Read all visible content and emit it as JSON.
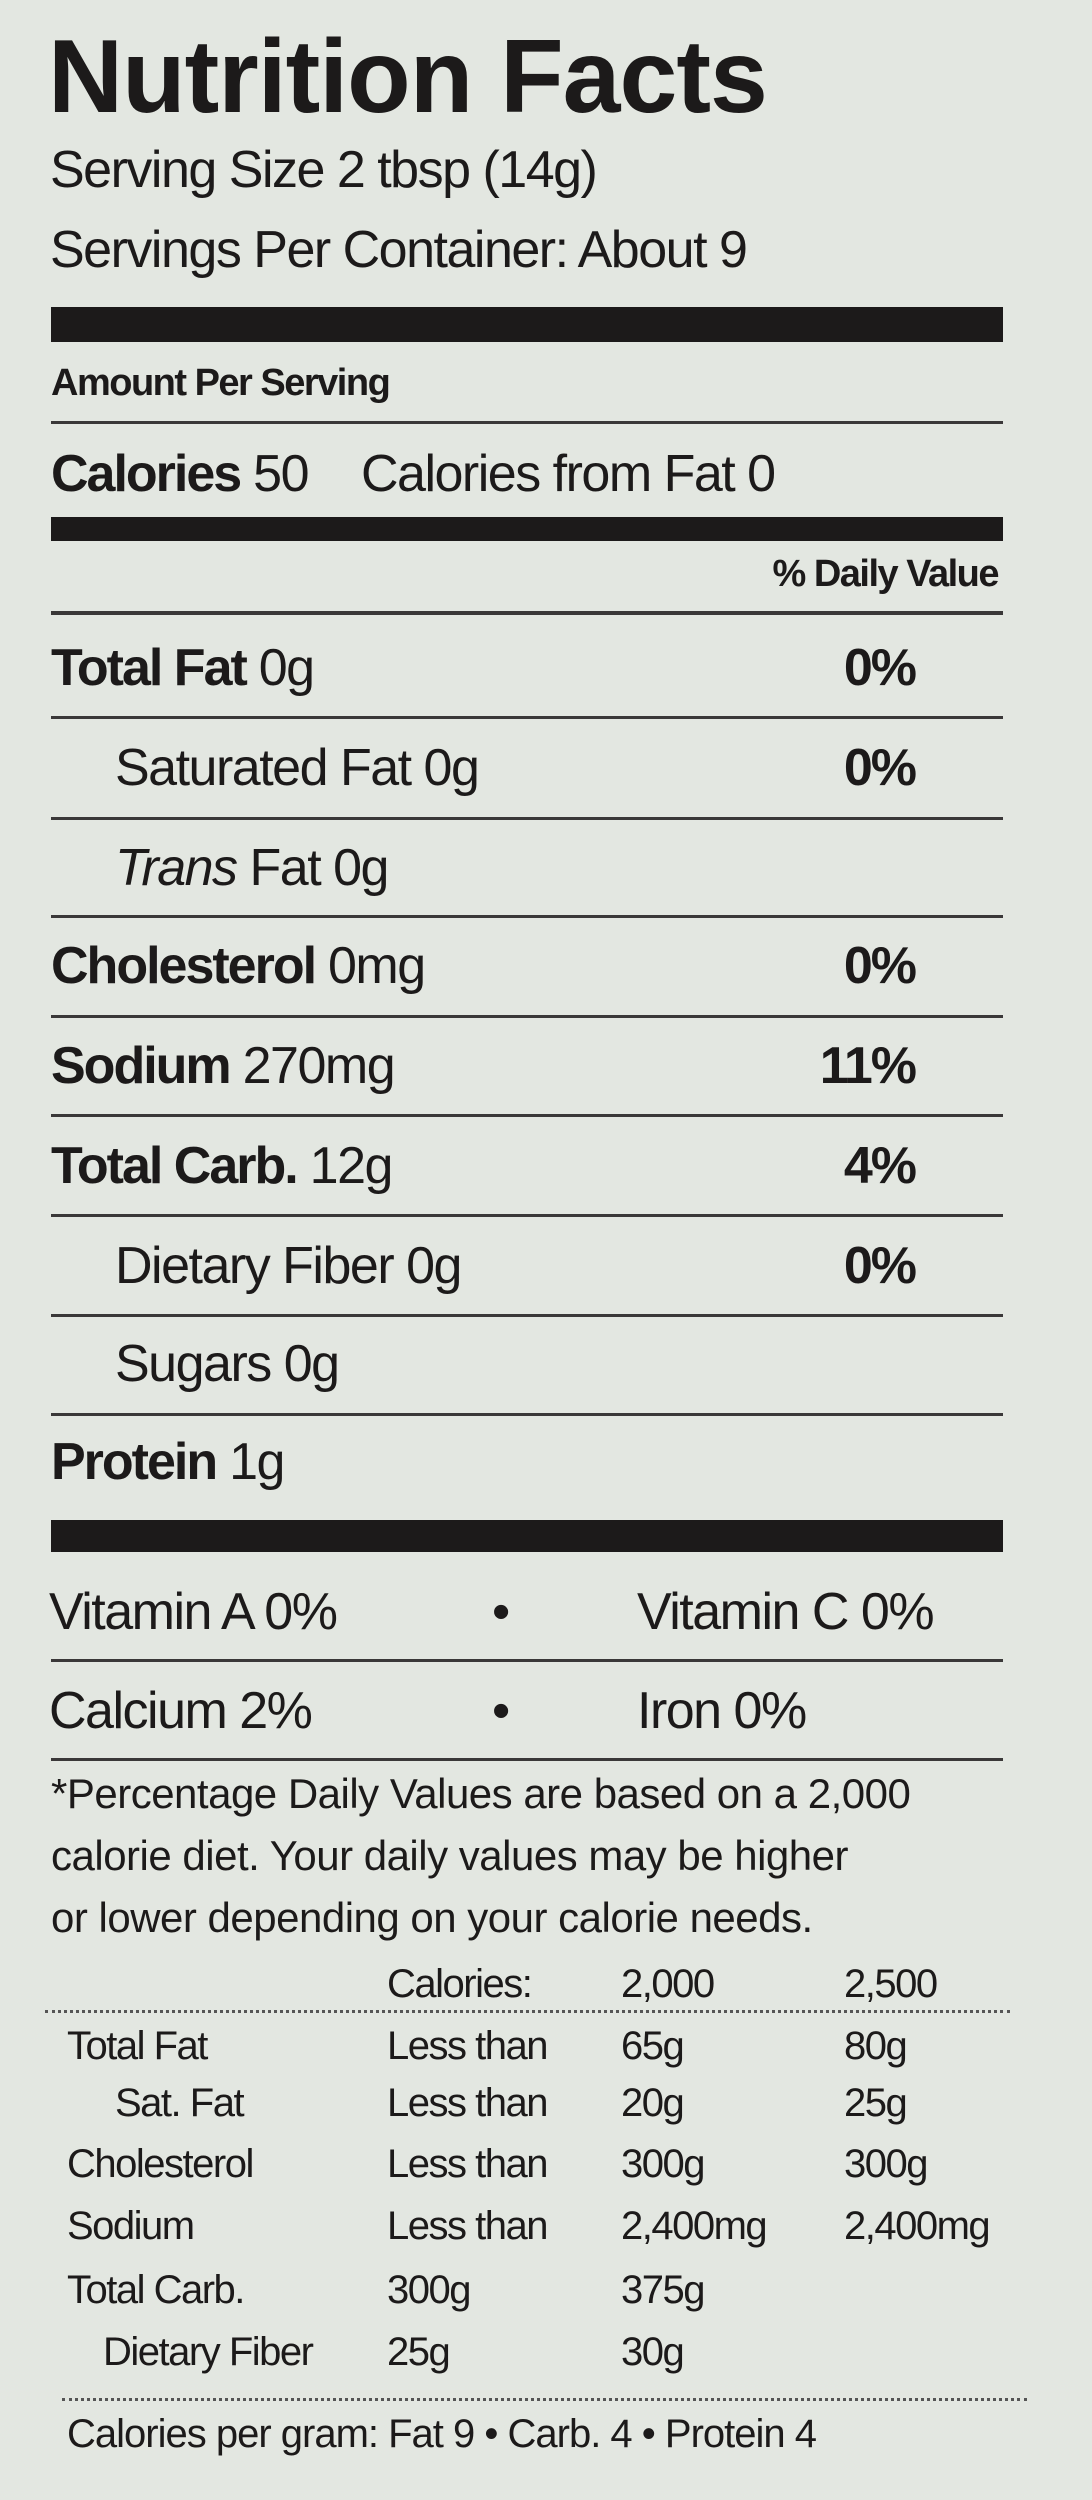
{
  "title": "Nutrition Facts",
  "serving_size": "Serving Size 2 tbsp (14g)",
  "servings_per_container": "Servings Per Container: About 9",
  "amount_per_serving": "Amount Per Serving",
  "calories_label": "Calories",
  "calories_value": "50",
  "calories_from_fat": "Calories from Fat 0",
  "daily_value_header": "% Daily Value",
  "nutrients": [
    {
      "name": "Total Fat",
      "amount": "0g",
      "dv": "0%",
      "bold": true,
      "italic_prefix": "",
      "indent": false
    },
    {
      "name": "Saturated Fat",
      "amount": "0g",
      "dv": "0%",
      "bold": false,
      "italic_prefix": "",
      "indent": true
    },
    {
      "name": "Fat",
      "amount": "0g",
      "dv": "",
      "bold": false,
      "italic_prefix": "Trans",
      "indent": true
    },
    {
      "name": "Cholesterol",
      "amount": "0mg",
      "dv": "0%",
      "bold": true,
      "italic_prefix": "",
      "indent": false
    },
    {
      "name": "Sodium",
      "amount": "270mg",
      "dv": "11%",
      "bold": true,
      "italic_prefix": "",
      "indent": false
    },
    {
      "name": "Total Carb.",
      "amount": "12g",
      "dv": "4%",
      "bold": true,
      "italic_prefix": "",
      "indent": false
    },
    {
      "name": "Dietary Fiber",
      "amount": "0g",
      "dv": "0%",
      "bold": false,
      "italic_prefix": "",
      "indent": true
    },
    {
      "name": "Sugars",
      "amount": "0g",
      "dv": "",
      "bold": false,
      "italic_prefix": "",
      "indent": true
    },
    {
      "name": "Protein",
      "amount": "1g",
      "dv": "",
      "bold": true,
      "italic_prefix": "",
      "indent": false
    }
  ],
  "vitamins": [
    {
      "left": "Vitamin A  0%",
      "right": "Vitamin C  0%"
    },
    {
      "left": "Calcium  2%",
      "right": "Iron  0%"
    }
  ],
  "bullet": "•",
  "footnote": [
    "*Percentage Daily Values are based on a 2,000",
    " calorie diet. Your daily values may be higher",
    " or lower depending on your calorie needs."
  ],
  "dv_table": {
    "header": [
      "",
      "Calories:",
      "2,000",
      "2,500"
    ],
    "rows": [
      [
        "Total Fat",
        "Less than",
        "65g",
        "80g"
      ],
      [
        "Sat. Fat",
        "Less than",
        "20g",
        "25g"
      ],
      [
        "Cholesterol",
        "Less than",
        "300g",
        "300g"
      ],
      [
        "Sodium",
        "Less than",
        "2,400mg",
        "2,400mg"
      ],
      [
        "Total Carb.",
        "300g",
        "375g",
        ""
      ],
      [
        "Dietary Fiber",
        "25g",
        "30g",
        ""
      ]
    ]
  },
  "calories_per_gram": "Calories per gram: Fat 9  •  Carb. 4  •  Protein 4"
}
